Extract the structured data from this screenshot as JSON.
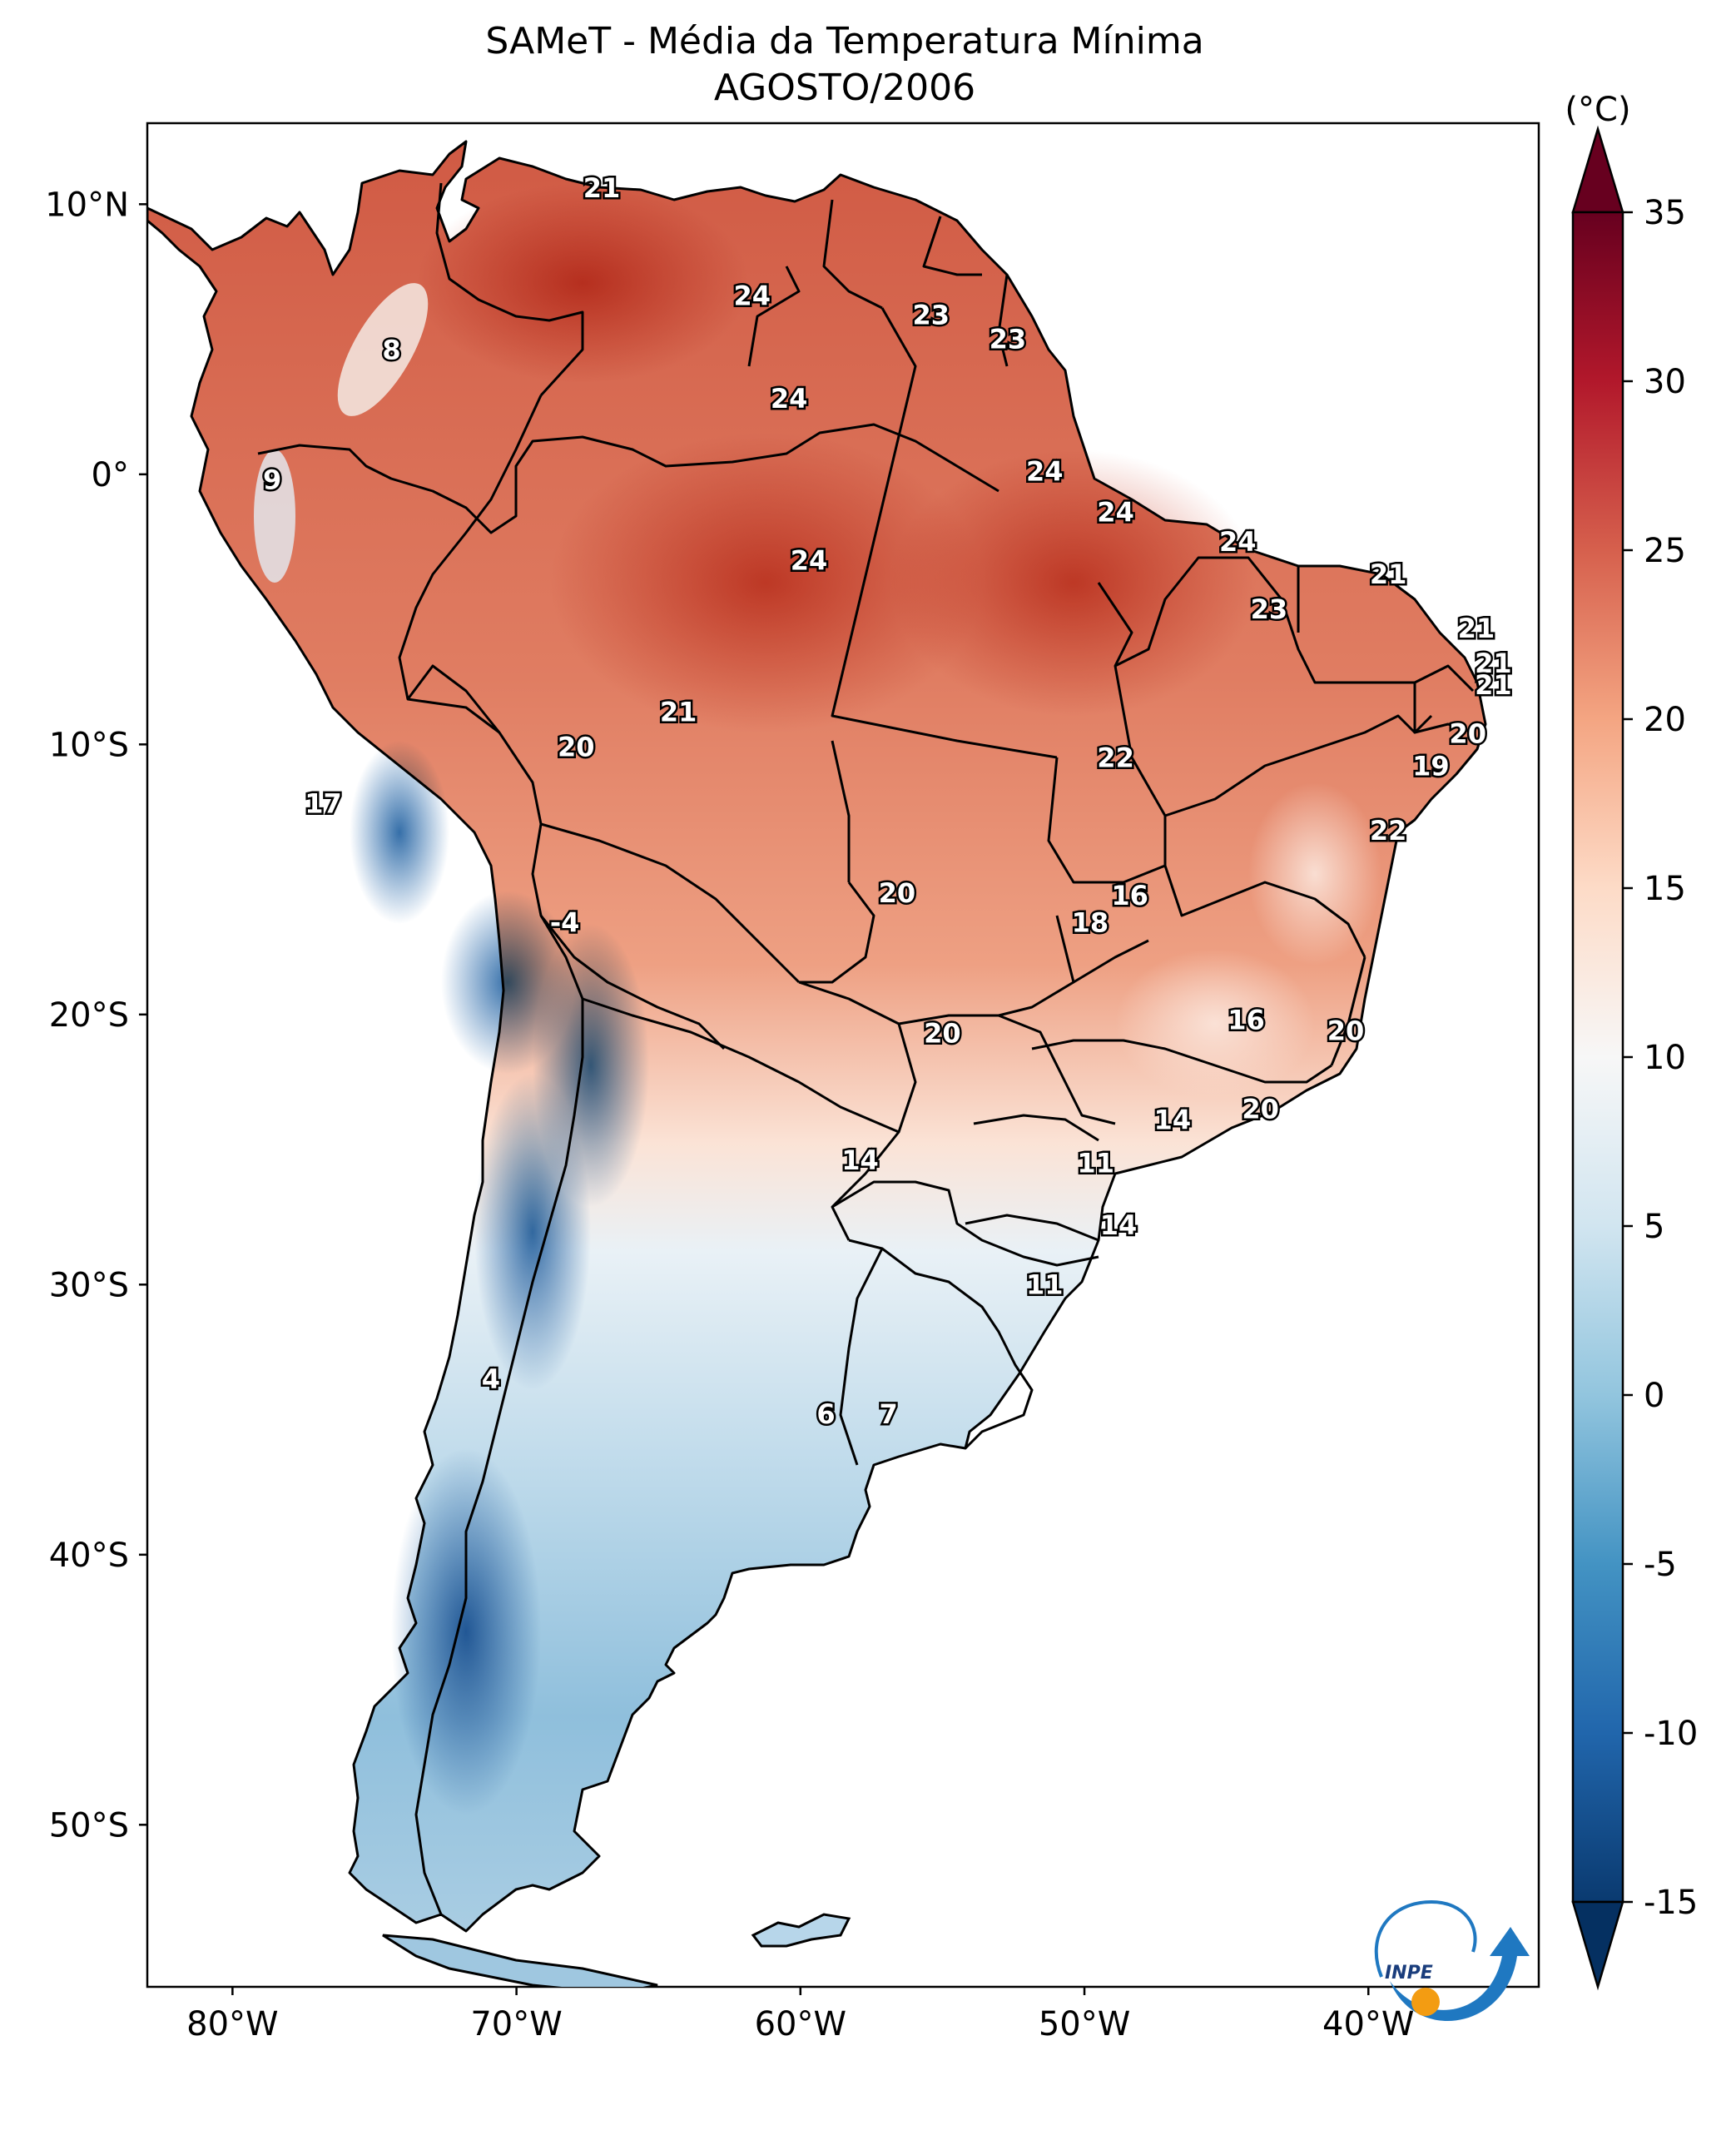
{
  "title": {
    "line1": "SAMeT - Média da Temperatura Mínima",
    "line2": "AGOSTO/2006"
  },
  "map": {
    "lon_labels": [
      "80°W",
      "70°W",
      "60°W",
      "50°W",
      "40°W"
    ],
    "lat_labels": [
      "10°N",
      "0°",
      "10°S",
      "20°S",
      "30°S",
      "40°S",
      "50°S"
    ],
    "lon_range": [
      -83,
      -34
    ],
    "lat_range": [
      -56,
      13
    ]
  },
  "colorbar": {
    "unit": "(°C)",
    "min": -15,
    "max": 35,
    "tick_values": [
      35,
      30,
      25,
      20,
      15,
      10,
      5,
      0,
      -5,
      -10,
      -15
    ],
    "tick_labels": [
      "35",
      "30",
      "25",
      "20",
      "15",
      "10",
      "5",
      "0",
      "-5",
      "-10",
      "-15"
    ],
    "colors": [
      "#0a3a70",
      "#2166ac",
      "#4393c3",
      "#92c5de",
      "#d1e5f0",
      "#f7f7f7",
      "#fddbc7",
      "#f4a582",
      "#d6604d",
      "#b2182b",
      "#67001f"
    ]
  },
  "labels": [
    {
      "text": "21",
      "lon": -67,
      "lat": 10.6
    },
    {
      "text": "8",
      "lon": -74.4,
      "lat": 4.6
    },
    {
      "text": "9",
      "lon": -78.6,
      "lat": -0.2
    },
    {
      "text": "24",
      "lon": -61.7,
      "lat": 6.6
    },
    {
      "text": "23",
      "lon": -55.4,
      "lat": 5.9
    },
    {
      "text": "23",
      "lon": -52.7,
      "lat": 5.0
    },
    {
      "text": "24",
      "lon": -60.4,
      "lat": 2.8
    },
    {
      "text": "24",
      "lon": -51.4,
      "lat": 0.1
    },
    {
      "text": "24",
      "lon": -48.9,
      "lat": -1.4
    },
    {
      "text": "24",
      "lon": -44.6,
      "lat": -2.5
    },
    {
      "text": "24",
      "lon": -59.7,
      "lat": -3.2
    },
    {
      "text": "21",
      "lon": -39.3,
      "lat": -3.7
    },
    {
      "text": "23",
      "lon": -43.5,
      "lat": -5.0
    },
    {
      "text": "21",
      "lon": -36.2,
      "lat": -5.7
    },
    {
      "text": "21",
      "lon": -35.6,
      "lat": -7.0
    },
    {
      "text": "21",
      "lon": -35.6,
      "lat": -7.8
    },
    {
      "text": "20",
      "lon": -36.5,
      "lat": -9.6
    },
    {
      "text": "19",
      "lon": -37.8,
      "lat": -10.8
    },
    {
      "text": "21",
      "lon": -64.3,
      "lat": -8.8
    },
    {
      "text": "20",
      "lon": -67.9,
      "lat": -10.1
    },
    {
      "text": "22",
      "lon": -48.9,
      "lat": -10.5
    },
    {
      "text": "17",
      "lon": -76.8,
      "lat": -12.2
    },
    {
      "text": "22",
      "lon": -39.3,
      "lat": -13.2
    },
    {
      "text": "20",
      "lon": -56.6,
      "lat": -15.5
    },
    {
      "text": "16",
      "lon": -48.4,
      "lat": -15.6
    },
    {
      "text": "18",
      "lon": -49.8,
      "lat": -16.6
    },
    {
      "text": "-4",
      "lon": -68.3,
      "lat": -16.6
    },
    {
      "text": "16",
      "lon": -44.3,
      "lat": -20.2
    },
    {
      "text": "20",
      "lon": -40.8,
      "lat": -20.6
    },
    {
      "text": "20",
      "lon": -55.0,
      "lat": -20.7
    },
    {
      "text": "20",
      "lon": -43.8,
      "lat": -23.5
    },
    {
      "text": "14",
      "lon": -46.9,
      "lat": -23.9
    },
    {
      "text": "14",
      "lon": -57.9,
      "lat": -25.4
    },
    {
      "text": "11",
      "lon": -49.6,
      "lat": -25.5
    },
    {
      "text": "14",
      "lon": -48.8,
      "lat": -27.8
    },
    {
      "text": "11",
      "lon": -51.4,
      "lat": -30.0
    },
    {
      "text": "4",
      "lon": -70.9,
      "lat": -33.5
    },
    {
      "text": "6",
      "lon": -59.1,
      "lat": -34.8
    },
    {
      "text": "7",
      "lon": -56.9,
      "lat": -34.8
    }
  ],
  "logo": {
    "text": "INPE"
  }
}
